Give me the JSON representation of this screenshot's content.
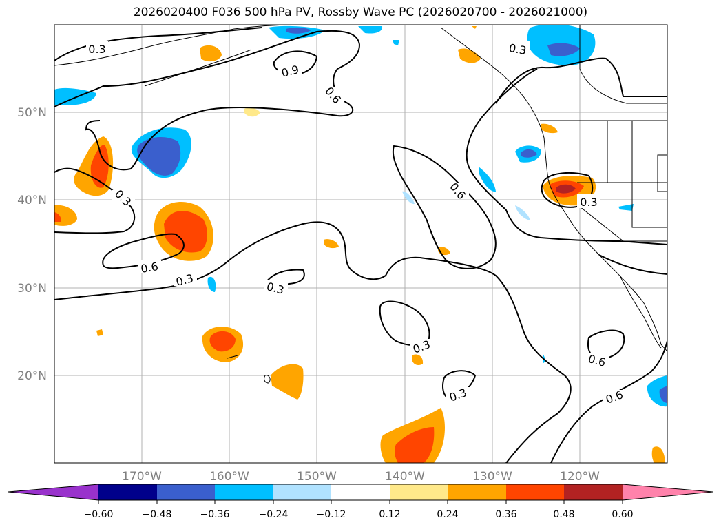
{
  "title": "2026020400 F036 500 hPa PV, Rossby Wave PC (2026020700 - 2026021000)",
  "map": {
    "lon_ticks": [
      "170°W",
      "160°W",
      "150°W",
      "140°W",
      "130°W",
      "120°W"
    ],
    "lat_ticks": [
      "50°N",
      "40°N",
      "30°N",
      "20°N"
    ],
    "contour_labels": [
      "0.3",
      "0.9",
      "0.6",
      "0.3",
      "0.6",
      "0.3",
      "0.3",
      "0.6",
      "0.3",
      "0.3",
      "0.3",
      "0.6",
      "0.3"
    ],
    "line_color": "#000000",
    "grid_color": "#b0b0b0"
  },
  "colorbar": {
    "ticks": [
      "−0.60",
      "−0.48",
      "−0.36",
      "−0.24",
      "−0.12",
      "0.12",
      "0.24",
      "0.36",
      "0.48",
      "0.60"
    ],
    "colors": [
      "#9932cc",
      "#00008b",
      "#3a5fcd",
      "#00bfff",
      "#b0e2ff",
      "#ffffff",
      "#ffe98a",
      "#ffa500",
      "#ff4500",
      "#b22222",
      "#ff82ab"
    ]
  }
}
